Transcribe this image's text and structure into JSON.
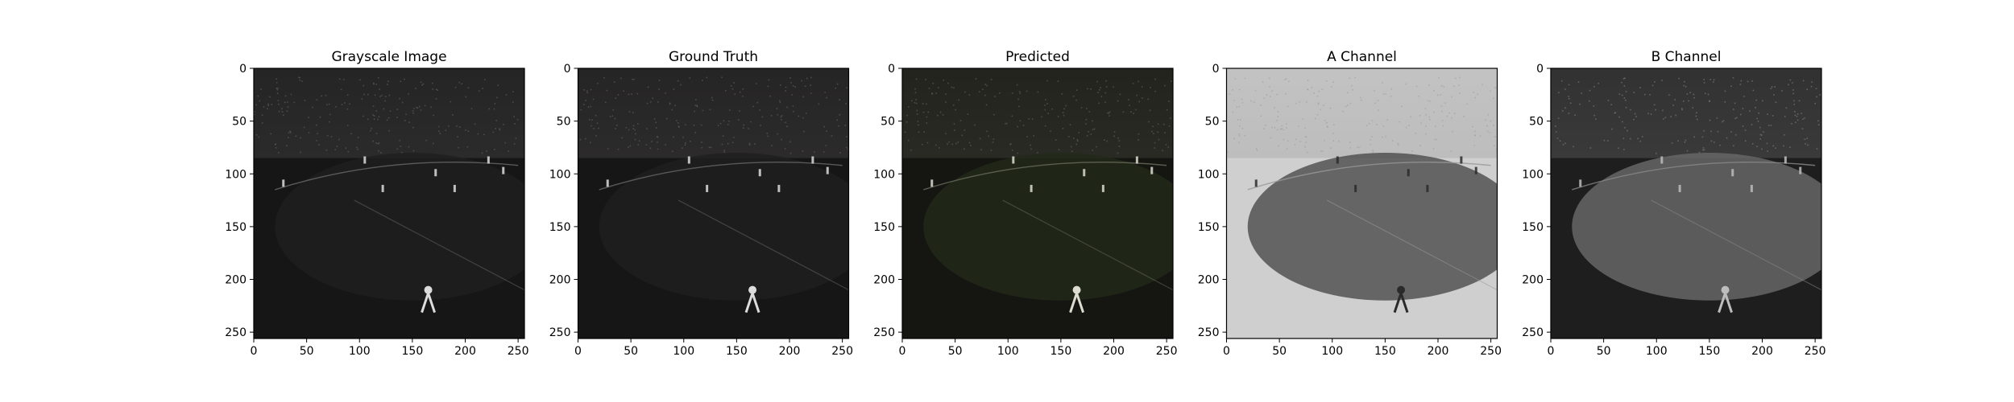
{
  "chart_data": [
    {
      "type": "image",
      "title": "Grayscale Image",
      "x_ticks": [
        0,
        50,
        100,
        150,
        200,
        250
      ],
      "y_ticks": [
        0,
        50,
        100,
        150,
        200,
        250
      ],
      "xlim": [
        0,
        256
      ],
      "ylim": [
        256,
        0
      ],
      "colors": {
        "bg": "#161616",
        "crowd": "#2b2b2b",
        "field": "#1f1f1f",
        "line": "#6a6a6a",
        "player": "#dcdcdc"
      }
    },
    {
      "type": "image",
      "title": "Ground Truth",
      "x_ticks": [
        0,
        50,
        100,
        150,
        200,
        250
      ],
      "y_ticks": [
        0,
        50,
        100,
        150,
        200,
        250
      ],
      "xlim": [
        0,
        256
      ],
      "ylim": [
        256,
        0
      ],
      "colors": {
        "bg": "#171616",
        "crowd": "#2c2b2b",
        "field": "#211f1f",
        "line": "#6b6868",
        "player": "#dcdcdc"
      }
    },
    {
      "type": "image",
      "title": "Predicted",
      "x_ticks": [
        0,
        50,
        100,
        150,
        200,
        250
      ],
      "y_ticks": [
        0,
        50,
        100,
        150,
        200,
        250
      ],
      "xlim": [
        0,
        256
      ],
      "ylim": [
        256,
        0
      ],
      "colors": {
        "bg": "#151512",
        "crowd": "#2a2a24",
        "field": "#232a19",
        "line": "#6a6e5c",
        "player": "#dcdcd0"
      }
    },
    {
      "type": "image",
      "title": "A Channel",
      "x_ticks": [
        0,
        50,
        100,
        150,
        200,
        250
      ],
      "y_ticks": [
        0,
        50,
        100,
        150,
        200,
        250
      ],
      "xlim": [
        0,
        256
      ],
      "ylim": [
        256,
        0
      ],
      "colors": {
        "bg": "#cfcfcf",
        "crowd": "#bdbdbd",
        "field": "#4a4a4a",
        "line": "#999999",
        "player": "#2a2a2a"
      }
    },
    {
      "type": "image",
      "title": "B Channel",
      "x_ticks": [
        0,
        50,
        100,
        150,
        200,
        250
      ],
      "y_ticks": [
        0,
        50,
        100,
        150,
        200,
        250
      ],
      "xlim": [
        0,
        256
      ],
      "ylim": [
        256,
        0
      ],
      "colors": {
        "bg": "#1e1e1e",
        "crowd": "#3a3a3a",
        "field": "#6a6a6a",
        "line": "#8a8a8a",
        "player": "#bdbdbd"
      }
    }
  ]
}
